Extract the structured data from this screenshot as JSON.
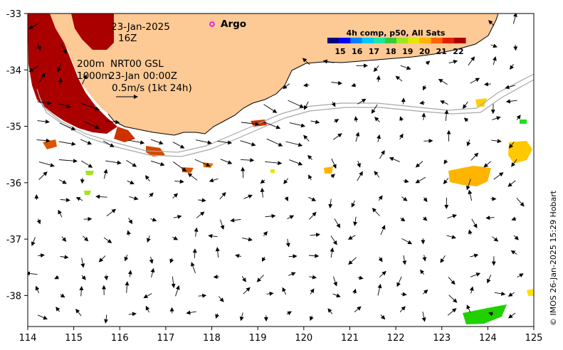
{
  "map": {
    "x_ticks": [
      "114",
      "115",
      "116",
      "117",
      "118",
      "119",
      "120",
      "121",
      "122",
      "123",
      "124",
      "125"
    ],
    "y_ticks": [
      "-33",
      "-34",
      "-35",
      "-36",
      "-37",
      "-38"
    ],
    "lon_range": [
      114,
      125
    ],
    "lat_range": [
      -38.55,
      -33
    ],
    "land_color": "#fdc995",
    "shelf_contours": [
      "200m",
      "1000m"
    ]
  },
  "annotations": {
    "date_line1": "23-Jan-2025",
    "date_line2": "16Z",
    "argo_label": "Argo",
    "argo_color": "#e600e6",
    "contour_200": "200m",
    "contour_1000": "1000m",
    "product": "NRT00 GSL",
    "timestamp": "23-Jan 00:00Z",
    "scale_text": "0.5m/s (1kt 24h)",
    "credit": "© IMOS 26-Jan-2025 15:29 Hobart"
  },
  "legend": {
    "title": "4h comp, p50, All Sats",
    "ticks": [
      "15",
      "16",
      "17",
      "18",
      "19",
      "20",
      "21",
      "22"
    ],
    "colors": [
      "#00007f",
      "#0000ff",
      "#007fff",
      "#00c8ff",
      "#20e6a0",
      "#3cc83c",
      "#a0e61e",
      "#e6e600",
      "#ffb400",
      "#ff6400",
      "#e61e00",
      "#aa0000"
    ]
  }
}
